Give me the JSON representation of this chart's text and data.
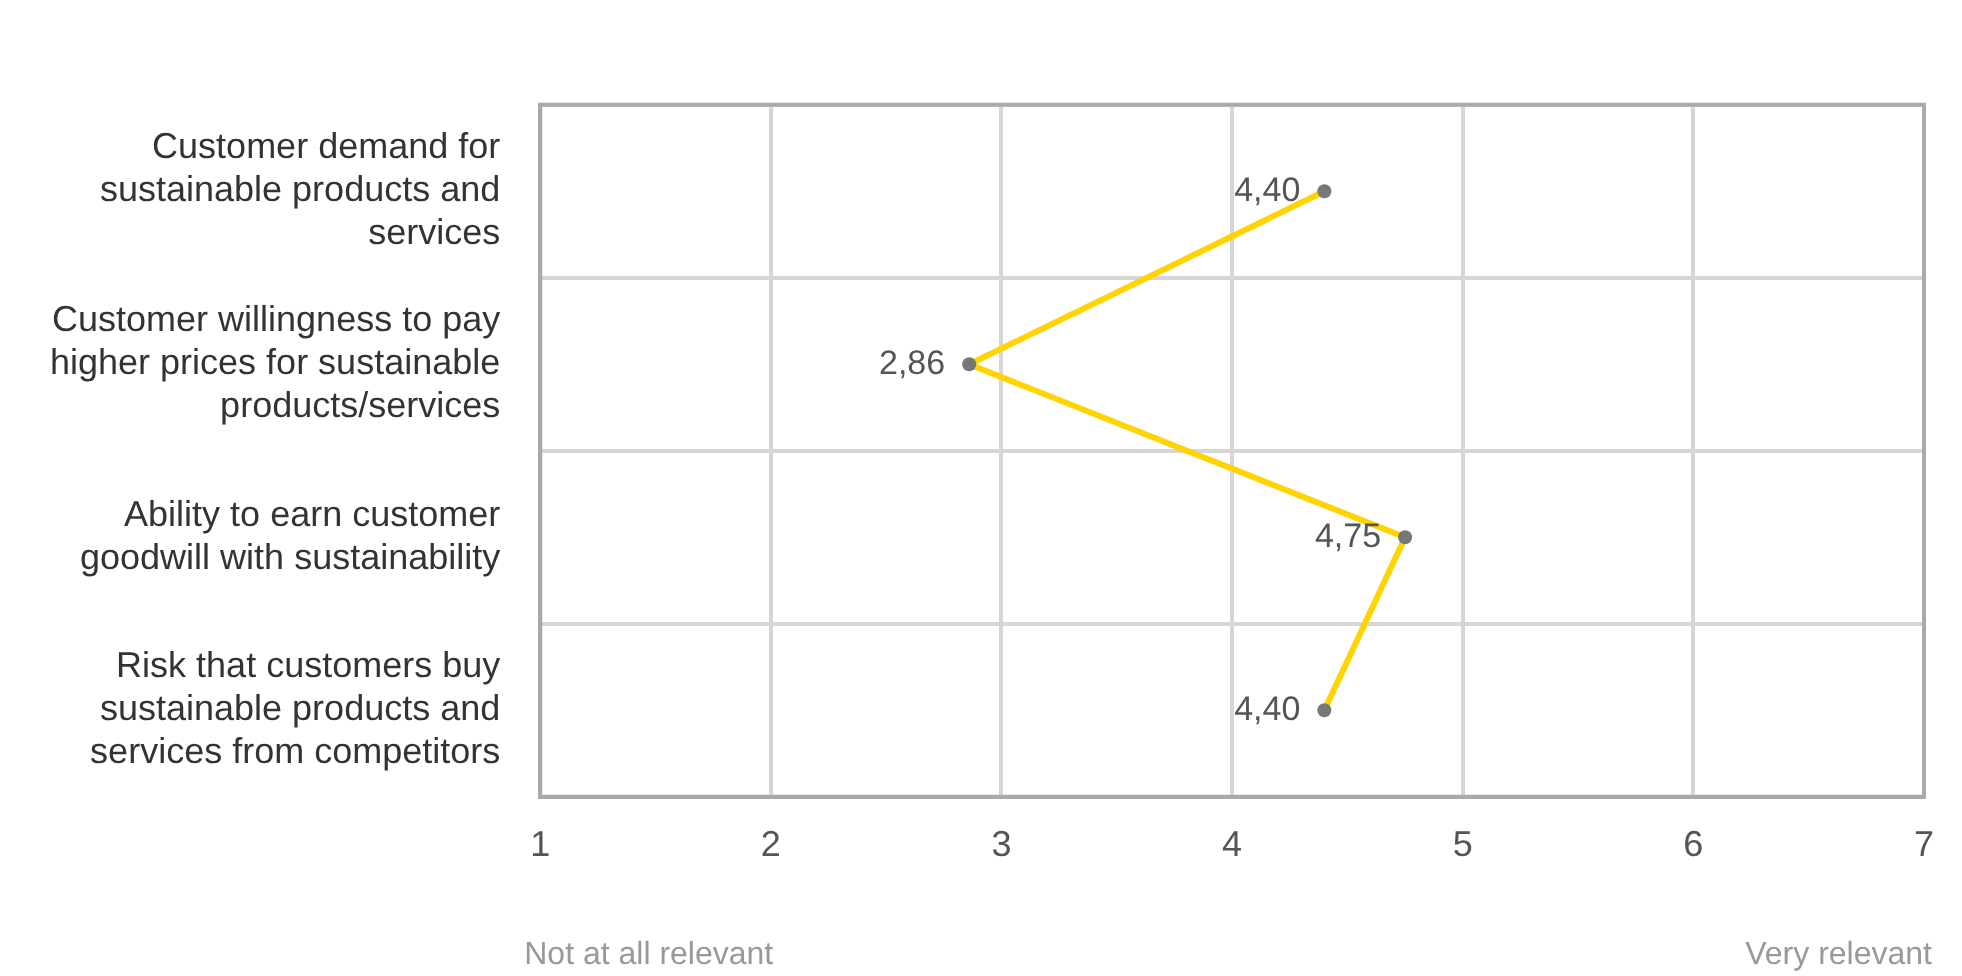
{
  "chart_data": {
    "type": "line",
    "orientation": "horizontal",
    "categories": [
      "Customer demand for sustainable products and services",
      "Customer willingness to pay higher prices for sustainable products/services",
      "Ability to earn customer goodwill with sustainability",
      "Risk that customers buy sustainable products and services from competitors"
    ],
    "series": [
      {
        "color": "#ffd400",
        "values": [
          4.4,
          2.86,
          4.75,
          4.4
        ],
        "value_labels": [
          "4,40",
          "2,86",
          "4,75",
          "4,40"
        ]
      }
    ],
    "xlim": [
      1,
      7
    ],
    "xticks": [
      1,
      2,
      3,
      4,
      5,
      6,
      7
    ],
    "annotations": [
      "Not at all relevant",
      "Very relevant"
    ],
    "grid": true,
    "legend": false,
    "marker": "circle",
    "line_style": "solid"
  }
}
